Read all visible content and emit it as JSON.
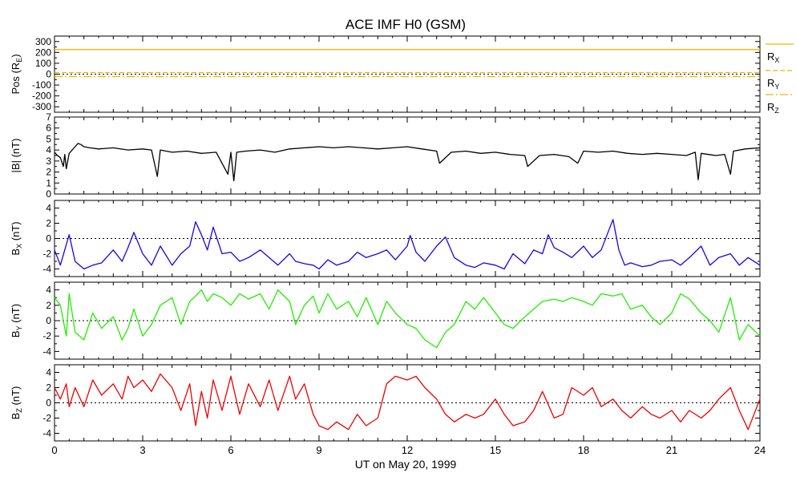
{
  "chart_data": {
    "type": "line",
    "title": "ACE IMF H0 (GSM)",
    "xlabel": "UT on May 20, 1999",
    "xlim": [
      0,
      24
    ],
    "xticks": [
      "0",
      "3",
      "6",
      "9",
      "12",
      "15",
      "18",
      "21",
      "24"
    ],
    "grid": false,
    "panels": [
      {
        "ylabel": "Pos (R",
        "ylabel_sub": "E",
        "ylabel_tail": ")",
        "ylim": [
          -350,
          350
        ],
        "yticks": [
          -300,
          -200,
          -100,
          0,
          100,
          200,
          300
        ],
        "zero_line": true,
        "legend": [
          "R",
          "R",
          "R"
        ],
        "legend_sub": [
          "X",
          "Y",
          "Z"
        ],
        "series": [
          {
            "key": "RX",
            "color": "#f0b400",
            "dash": "",
            "x": [
              0,
              24
            ],
            "y": [
              226,
              226
            ]
          },
          {
            "key": "RY",
            "color": "#f0b400",
            "dash": "6,3",
            "x": [
              0,
              24
            ],
            "y": [
              15,
              15
            ]
          },
          {
            "key": "RZ",
            "color": "#f0b400",
            "dash": "10,3,2,3",
            "x": [
              0,
              24
            ],
            "y": [
              -22,
              -22
            ]
          }
        ]
      },
      {
        "ylabel": "|B| (nT)",
        "ylim": [
          0,
          7
        ],
        "yticks": [
          0,
          1,
          2,
          3,
          4,
          5,
          6,
          7
        ],
        "zero_line": false,
        "series": [
          {
            "name": "|B|",
            "color": "#000000",
            "x": [
              0,
              0.1,
              0.2,
              0.3,
              0.35,
              0.4,
              0.5,
              0.6,
              0.7,
              0.8,
              0.9,
              1,
              1.2,
              1.5,
              2,
              2.5,
              3,
              3.3,
              3.5,
              3.6,
              4,
              4.5,
              5,
              5.5,
              5.9,
              6,
              6.1,
              6.2,
              6.5,
              7,
              7.5,
              8,
              8.5,
              9,
              9.5,
              10,
              10.5,
              11,
              11.5,
              12,
              12.5,
              13,
              13.1,
              13.5,
              14,
              14.5,
              15,
              15.5,
              16,
              16.1,
              16.5,
              17,
              17.5,
              17.8,
              18,
              18.5,
              19,
              19.5,
              20,
              20.5,
              21,
              21.5,
              21.8,
              21.9,
              22,
              22.5,
              22.8,
              23,
              23.1,
              23.5,
              24
            ],
            "y": [
              3.8,
              3.5,
              3.3,
              2.5,
              3.6,
              2.3,
              3.7,
              4,
              4.3,
              4.6,
              4.5,
              4.3,
              4.2,
              4.1,
              4.2,
              4,
              4.1,
              4,
              1.6,
              4,
              3.8,
              3.9,
              3.7,
              3.8,
              1.8,
              3.8,
              1.2,
              3.8,
              3.9,
              4,
              3.8,
              4.1,
              4.2,
              4.3,
              4.2,
              4.3,
              4.2,
              4.1,
              4.2,
              4.3,
              4.1,
              3.9,
              2.8,
              3.8,
              3.9,
              3.7,
              3.8,
              3.6,
              3.5,
              2.5,
              3.5,
              3.6,
              3.4,
              2.8,
              3.9,
              3.8,
              3.9,
              3.7,
              3.6,
              3.7,
              3.6,
              3.5,
              3.8,
              1.3,
              3.7,
              3.5,
              3.6,
              1.8,
              3.9,
              4.1,
              4.2
            ]
          }
        ]
      },
      {
        "ylabel": "B",
        "ylabel_sub": "X",
        "ylabel_tail": " (nT)",
        "ylim": [
          -5,
          5
        ],
        "yticks": [
          -4,
          -2,
          0,
          2,
          4
        ],
        "zero_line": true,
        "series": [
          {
            "name": "Bx",
            "color": "#2200dd",
            "x": [
              0,
              0.2,
              0.4,
              0.5,
              0.7,
              1,
              1.3,
              1.6,
              2,
              2.3,
              2.5,
              2.7,
              3,
              3.3,
              3.6,
              4,
              4.3,
              4.6,
              4.8,
              5,
              5.2,
              5.4,
              5.7,
              6,
              6.3,
              6.6,
              7,
              7.3,
              7.6,
              8,
              8.2,
              8.5,
              8.8,
              9,
              9.3,
              9.6,
              10,
              10.3,
              10.6,
              11,
              11.3,
              11.6,
              12,
              12.1,
              12.3,
              12.6,
              13,
              13.3,
              13.6,
              14,
              14.3,
              14.6,
              15,
              15.3,
              15.6,
              16,
              16.3,
              16.6,
              16.8,
              17,
              17.3,
              17.6,
              18,
              18.3,
              18.6,
              18.9,
              19,
              19.2,
              19.4,
              19.6,
              20,
              20.3,
              20.6,
              21,
              21.3,
              21.6,
              22,
              22.3,
              22.6,
              23,
              23.3,
              23.6,
              24
            ],
            "y": [
              -1.5,
              -3.5,
              -0.8,
              0.5,
              -3,
              -4,
              -3.5,
              -3.2,
              -1.5,
              -3,
              -1.2,
              0.8,
              -2,
              -3.5,
              -1,
              -3.5,
              -2,
              -1,
              2.2,
              0.5,
              -1.5,
              1.5,
              -2,
              -1.8,
              -3,
              -2.5,
              -1.5,
              -2.5,
              -3.5,
              -2,
              -3,
              -3.3,
              -3.5,
              -4,
              -2.8,
              -3.5,
              -3,
              -1.8,
              -2.5,
              -2,
              -1.5,
              -2.8,
              -1,
              0.4,
              -1.8,
              -3,
              -1,
              0.2,
              -2.5,
              -3.5,
              -3.8,
              -3.2,
              -3.5,
              -4,
              -2,
              -3.3,
              -1.5,
              -2,
              0.5,
              -1.2,
              -1.8,
              -2.5,
              -1,
              -2.5,
              -1.5,
              1.5,
              2.5,
              -1.5,
              -3.5,
              -3.2,
              -3.7,
              -3.5,
              -3,
              -2.8,
              -3.5,
              -2.5,
              -1,
              -3.5,
              -2.5,
              -2,
              -3.5,
              -2.5,
              -3.5
            ]
          }
        ]
      },
      {
        "ylabel": "B",
        "ylabel_sub": "Y",
        "ylabel_tail": " (nT)",
        "ylim": [
          -5,
          5
        ],
        "yticks": [
          -4,
          -2,
          0,
          2,
          4
        ],
        "zero_line": true,
        "series": [
          {
            "name": "By",
            "color": "#22ee00",
            "x": [
              0,
              0.2,
              0.4,
              0.5,
              0.7,
              1,
              1.3,
              1.6,
              2,
              2.3,
              2.5,
              2.7,
              3,
              3.3,
              3.6,
              4,
              4.3,
              4.6,
              4.8,
              5,
              5.2,
              5.4,
              5.7,
              6,
              6.3,
              6.6,
              7,
              7.3,
              7.6,
              8,
              8.2,
              8.5,
              8.8,
              9,
              9.3,
              9.6,
              10,
              10.3,
              10.6,
              11,
              11.3,
              11.6,
              12,
              12.3,
              12.6,
              13,
              13.3,
              13.6,
              14,
              14.3,
              14.6,
              15,
              15.3,
              15.6,
              16,
              16.3,
              16.6,
              17,
              17.3,
              17.6,
              18,
              18.3,
              18.6,
              19,
              19.3,
              19.6,
              20,
              20.3,
              20.6,
              21,
              21.3,
              21.6,
              22,
              22.3,
              22.6,
              23,
              23.3,
              23.6,
              24
            ],
            "y": [
              3,
              2,
              -2,
              3.5,
              -1.5,
              -2.5,
              1,
              -1,
              0.5,
              -2.5,
              -1,
              1.5,
              -2,
              -0.5,
              2,
              3,
              -0.5,
              2.5,
              3.2,
              4,
              2.5,
              3.5,
              3,
              2,
              3.5,
              2.8,
              3.5,
              1.5,
              4,
              2.5,
              -0.5,
              2,
              3.2,
              1,
              3.5,
              1.5,
              2.5,
              0.5,
              3,
              -0.5,
              2.5,
              1,
              -0.5,
              -1,
              -2.5,
              -3.5,
              -1.5,
              -0.5,
              2.5,
              1.5,
              3,
              1,
              -0.5,
              -1,
              0.5,
              1.5,
              2.5,
              2.8,
              2.5,
              3,
              2.5,
              2,
              3.5,
              3.2,
              3.5,
              1.5,
              2,
              0.5,
              -0.5,
              1,
              3.5,
              2.8,
              1,
              0,
              -1.5,
              3,
              -2.5,
              -0.5,
              -2
            ]
          }
        ]
      },
      {
        "ylabel": "B",
        "ylabel_sub": "Z",
        "ylabel_tail": " (nT)",
        "ylim": [
          -5,
          5
        ],
        "yticks": [
          -4,
          -2,
          0,
          2,
          4
        ],
        "zero_line": true,
        "series": [
          {
            "name": "Bz",
            "color": "#ee0000",
            "x": [
              0,
              0.2,
              0.4,
              0.5,
              0.7,
              1,
              1.3,
              1.6,
              2,
              2.3,
              2.5,
              2.7,
              3,
              3.3,
              3.6,
              4,
              4.3,
              4.6,
              4.8,
              5,
              5.2,
              5.4,
              5.7,
              6,
              6.3,
              6.6,
              7,
              7.3,
              7.6,
              8,
              8.2,
              8.5,
              8.8,
              9,
              9.3,
              9.6,
              10,
              10.3,
              10.6,
              11,
              11.3,
              11.6,
              12,
              12.3,
              12.6,
              13,
              13.3,
              13.6,
              14,
              14.3,
              14.6,
              15,
              15.3,
              15.6,
              16,
              16.3,
              16.6,
              17,
              17.3,
              17.6,
              18,
              18.3,
              18.6,
              19,
              19.3,
              19.6,
              20,
              20.3,
              20.6,
              21,
              21.3,
              21.6,
              22,
              22.3,
              22.6,
              23,
              23.3,
              23.6,
              24
            ],
            "y": [
              2,
              0.5,
              2.5,
              -0.5,
              2,
              -0.5,
              3,
              1,
              2.5,
              0.5,
              3.5,
              2,
              3,
              1.5,
              3.8,
              2,
              -1,
              2.5,
              -3,
              1.5,
              -2,
              3,
              -1,
              3.5,
              -1.5,
              2.5,
              -0.5,
              3,
              -1,
              3.5,
              0.5,
              2.5,
              -1.5,
              -3,
              -3.5,
              -2.5,
              -3.5,
              -1.5,
              -3,
              -2,
              2.5,
              3.5,
              3,
              3.5,
              2,
              0.5,
              -1.5,
              -2.5,
              -1.5,
              -2,
              -1.5,
              0.5,
              -1.5,
              -3,
              -2.5,
              -1,
              1.5,
              -2,
              -1.5,
              2,
              1,
              2,
              -0.5,
              0.5,
              -1,
              -2,
              -0.5,
              -1.5,
              -2,
              -1,
              -2.5,
              -1,
              -2,
              -1,
              0.5,
              2,
              -1,
              -3.5,
              0.5
            ]
          }
        ]
      }
    ]
  }
}
